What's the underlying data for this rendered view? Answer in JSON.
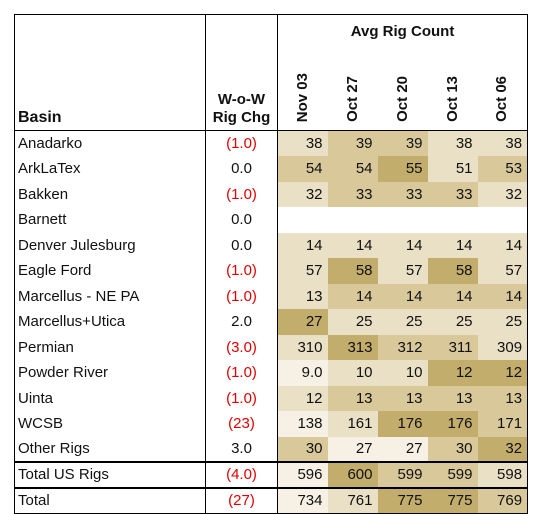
{
  "header": {
    "basin": "Basin",
    "wow_line1": "W-o-W",
    "wow_line2": "Rig Chg",
    "avg_rig_count": "Avg Rig Count",
    "dates": [
      "Nov 03",
      "Oct 27",
      "Oct 20",
      "Oct 13",
      "Oct 06"
    ]
  },
  "rows": [
    {
      "basin": "Anadarko",
      "wow": "(1.0)",
      "neg": true,
      "values": [
        "38",
        "39",
        "39",
        "38",
        "38"
      ],
      "shade": [
        1,
        2,
        2,
        1,
        1
      ]
    },
    {
      "basin": "ArkLaTex",
      "wow": "0.0",
      "neg": false,
      "values": [
        "54",
        "54",
        "55",
        "51",
        "53"
      ],
      "shade": [
        2,
        2,
        3,
        1,
        2
      ]
    },
    {
      "basin": "Bakken",
      "wow": "(1.0)",
      "neg": true,
      "values": [
        "32",
        "33",
        "33",
        "33",
        "32"
      ],
      "shade": [
        1,
        2,
        2,
        2,
        1
      ]
    },
    {
      "basin": "Barnett",
      "wow": "0.0",
      "neg": false,
      "values": [
        "",
        "",
        "",
        "",
        ""
      ],
      "shade": [
        -1,
        -1,
        -1,
        -1,
        -1
      ]
    },
    {
      "basin": "Denver Julesburg",
      "wow": "0.0",
      "neg": false,
      "values": [
        "14",
        "14",
        "14",
        "14",
        "14"
      ],
      "shade": [
        1,
        1,
        1,
        1,
        1
      ]
    },
    {
      "basin": "Eagle Ford",
      "wow": "(1.0)",
      "neg": true,
      "values": [
        "57",
        "58",
        "57",
        "58",
        "57"
      ],
      "shade": [
        1,
        3,
        1,
        3,
        1
      ]
    },
    {
      "basin": "Marcellus - NE PA",
      "wow": "(1.0)",
      "neg": true,
      "values": [
        "13",
        "14",
        "14",
        "14",
        "14"
      ],
      "shade": [
        1,
        2,
        2,
        2,
        2
      ]
    },
    {
      "basin": "Marcellus+Utica",
      "wow": "2.0",
      "neg": false,
      "values": [
        "27",
        "25",
        "25",
        "25",
        "25"
      ],
      "shade": [
        3,
        1,
        1,
        1,
        1
      ]
    },
    {
      "basin": "Permian",
      "wow": "(3.0)",
      "neg": true,
      "values": [
        "310",
        "313",
        "312",
        "311",
        "309"
      ],
      "shade": [
        1,
        3,
        2,
        2,
        1
      ]
    },
    {
      "basin": "Powder River",
      "wow": "(1.0)",
      "neg": true,
      "values": [
        "9.0",
        "10",
        "10",
        "12",
        "12"
      ],
      "shade": [
        0,
        1,
        1,
        3,
        3
      ]
    },
    {
      "basin": "Uinta",
      "wow": "(1.0)",
      "neg": true,
      "values": [
        "12",
        "13",
        "13",
        "13",
        "13"
      ],
      "shade": [
        1,
        2,
        2,
        2,
        2
      ]
    },
    {
      "basin": "WCSB",
      "wow": "(23)",
      "neg": true,
      "values": [
        "138",
        "161",
        "176",
        "176",
        "171"
      ],
      "shade": [
        0,
        1,
        3,
        3,
        2
      ]
    },
    {
      "basin": "Other Rigs",
      "wow": "3.0",
      "neg": false,
      "values": [
        "30",
        "27",
        "27",
        "30",
        "32"
      ],
      "shade": [
        2,
        0,
        0,
        2,
        3
      ]
    }
  ],
  "totals": [
    {
      "basin": "Total US Rigs",
      "wow": "(4.0)",
      "neg": true,
      "values": [
        "596",
        "600",
        "599",
        "599",
        "598"
      ],
      "shade": [
        0,
        3,
        2,
        2,
        1
      ]
    },
    {
      "basin": "Total",
      "wow": "(27)",
      "neg": true,
      "values": [
        "734",
        "761",
        "775",
        "775",
        "769"
      ],
      "shade": [
        0,
        1,
        3,
        3,
        2
      ]
    }
  ],
  "colors": {
    "negative": "#e00000",
    "shade_scale": [
      "#f6f1e4",
      "#e9e0c6",
      "#d8c89a",
      "#c3ad6c"
    ]
  }
}
